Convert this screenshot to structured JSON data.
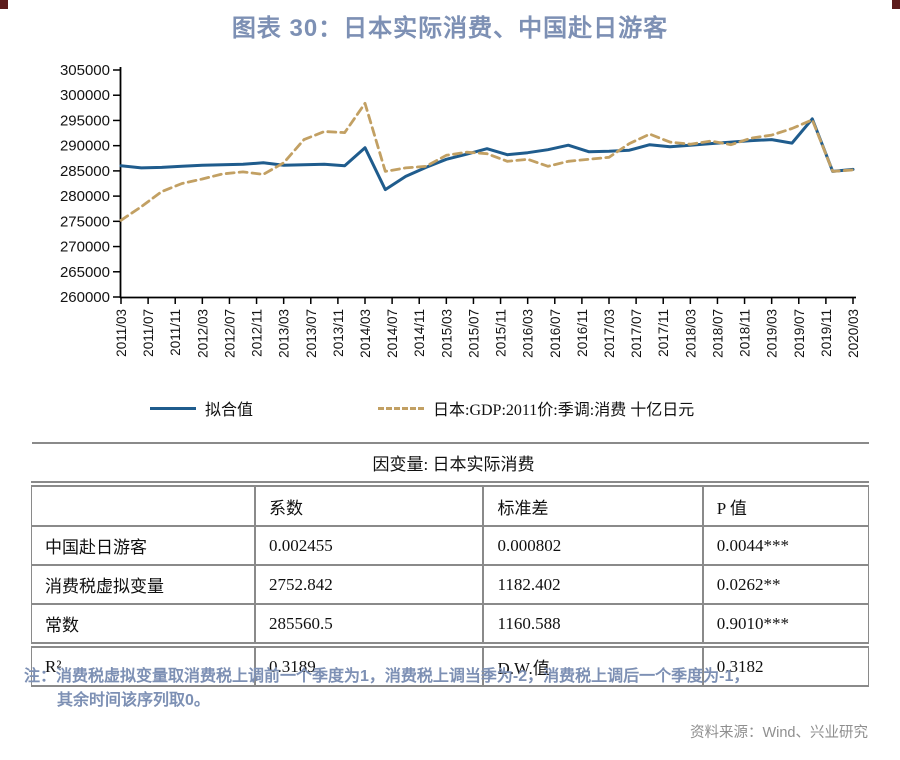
{
  "page": {
    "title": "图表 30：日本实际消费、中国赴日游客",
    "note_line1": "注：消费税虚拟变量取消费税上调前一个季度为1，消费税上调当季为-2，消费税上调后一个季度为-1，",
    "note_line2": "其余时间该序列取0。",
    "source": "资料来源：Wind、兴业研究"
  },
  "colors": {
    "fitted_line": "#1f5c8d",
    "actual_line": "#c2a063",
    "title_text": "#7d90b4",
    "note_text": "#7d90b4",
    "source_text": "#8f8f8f",
    "axis": "#000000",
    "table_border": "#8a8a8a",
    "corner_mark": "#5c1b1b"
  },
  "chart_data": {
    "type": "line",
    "frequency": "quarterly",
    "x_start": "2011/03",
    "x_end": "2020/03",
    "x_months_span": 108,
    "ylim": [
      260000,
      305000
    ],
    "y_ticks": [
      260000,
      265000,
      270000,
      275000,
      280000,
      285000,
      290000,
      295000,
      300000,
      305000
    ],
    "x_tick_labels": [
      "2011/03",
      "2011/07",
      "2011/11",
      "2012/03",
      "2012/07",
      "2012/11",
      "2013/03",
      "2013/07",
      "2013/11",
      "2014/03",
      "2014/07",
      "2014/11",
      "2015/03",
      "2015/07",
      "2015/11",
      "2016/03",
      "2016/07",
      "2016/11",
      "2017/03",
      "2017/07",
      "2017/11",
      "2018/03",
      "2018/07",
      "2018/11",
      "2019/03",
      "2019/07",
      "2019/11",
      "2020/03"
    ],
    "grid": false,
    "legend_position": "bottom",
    "series": [
      {
        "name": "拟合值",
        "style": "solid",
        "color": "#1f5c8d",
        "values": [
          286000,
          285600,
          285700,
          285900,
          286100,
          286200,
          286300,
          286600,
          286100,
          286200,
          286300,
          286000,
          289600,
          281300,
          283900,
          285700,
          287300,
          288300,
          289400,
          288200,
          288600,
          289200,
          290100,
          288800,
          288900,
          289100,
          290200,
          289800,
          290100,
          290400,
          290700,
          291000,
          291200,
          290500,
          295300,
          284900,
          285300
        ]
      },
      {
        "name": "日本:GDP:2011价:季调:消费 十亿日元",
        "style": "dashed",
        "color": "#c2a063",
        "values": [
          275200,
          277900,
          280900,
          282500,
          283400,
          284400,
          284800,
          284300,
          286600,
          291200,
          292800,
          292600,
          298400,
          284900,
          285600,
          285900,
          288100,
          288700,
          288400,
          286900,
          287300,
          285900,
          286900,
          287300,
          287700,
          290400,
          292300,
          290700,
          290300,
          290900,
          290200,
          291500,
          292100,
          293400,
          295100,
          284900,
          285200
        ]
      }
    ]
  },
  "table": {
    "dependent_var_label": "因变量: 日本实际消费",
    "headers": [
      "",
      "系数",
      "标准差",
      "P 值"
    ],
    "rows": [
      {
        "label": "中国赴日游客",
        "coef": "0.002455",
        "se": "0.000802",
        "p": "0.0044***"
      },
      {
        "label": "消费税虚拟变量",
        "coef": "2752.842",
        "se": "1182.402",
        "p": "0.0262**"
      },
      {
        "label": "常数",
        "coef": "285560.5",
        "se": "1160.588",
        "p": "0.9010***"
      },
      {
        "label": "R²",
        "coef": "0.3189",
        "se": "D.W.值",
        "p": "0.3182"
      }
    ]
  }
}
